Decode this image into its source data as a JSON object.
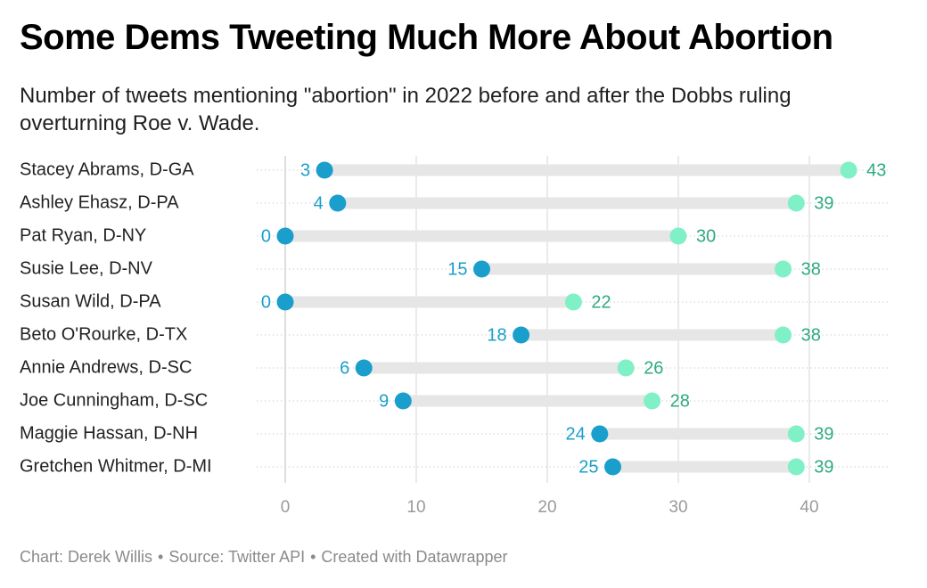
{
  "header": {
    "title": "Some Dems Tweeting Much More About Abortion",
    "subtitle": "Number of tweets mentioning \"abortion\" in 2022 before and after the Dobbs ruling overturning Roe v. Wade."
  },
  "footer": {
    "credit": "Chart: Derek Willis",
    "source": "Source: Twitter API",
    "tool": "Created with Datawrapper",
    "separator": "•"
  },
  "colors": {
    "before": "#1a9fcc",
    "after": "#80f0c6",
    "after_label": "#2eaa82",
    "range_bar": "#e6e6e6",
    "grid": "#d4d4d4"
  },
  "chart_data": {
    "type": "range-dot",
    "title": "Some Dems Tweeting Much More About Abortion",
    "subtitle": "Number of tweets mentioning \"abortion\" in 2022 before and after the Dobbs ruling overturning Roe v. Wade.",
    "xlabel": "",
    "ylabel": "",
    "xlim": [
      0,
      43
    ],
    "xticks": [
      0,
      10,
      20,
      30,
      40
    ],
    "grid": true,
    "categories": [
      "Stacey Abrams, D-GA",
      "Ashley Ehasz, D-PA",
      "Pat Ryan, D-NY",
      "Susie Lee, D-NV",
      "Susan Wild, D-PA",
      "Beto O'Rourke, D-TX",
      "Annie Andrews, D-SC",
      "Joe Cunningham, D-SC",
      "Maggie Hassan, D-NH",
      "Gretchen Whitmer, D-MI"
    ],
    "series": [
      {
        "values": [
          3,
          4,
          0,
          15,
          0,
          18,
          6,
          9,
          24,
          25
        ]
      },
      {
        "values": [
          43,
          39,
          30,
          38,
          22,
          38,
          26,
          28,
          39,
          39
        ]
      }
    ]
  }
}
